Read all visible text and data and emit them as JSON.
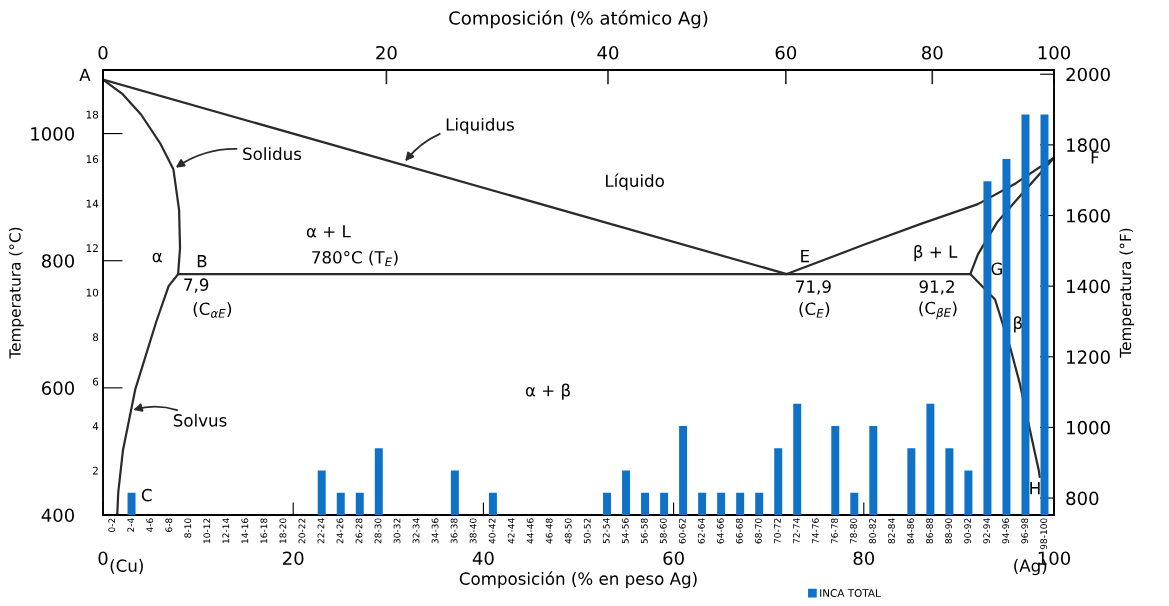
{
  "chart_data": [
    {
      "type": "line",
      "xlabel": "Composición (% en peso Ag)",
      "ylabel": "Temperatura (°C)",
      "y2label": "Temperatura (°F)",
      "line_style": "solid",
      "xlim": [
        0,
        100
      ],
      "xticks": [
        0,
        20,
        40,
        60,
        80,
        100
      ],
      "ylim": [
        400,
        1100
      ],
      "yticks": [
        400,
        600,
        800,
        1000
      ],
      "y2lim": [
        752,
        2012
      ],
      "y2ticks": [
        800,
        1000,
        1200,
        1400,
        1600,
        1800,
        2000
      ],
      "series": [
        {
          "color": "#2b2b2b",
          "x": [
            0,
            71.9
          ],
          "values": [
            1085,
            779
          ]
        },
        {
          "color": "#2b2b2b",
          "x": [
            0,
            2,
            4,
            6,
            7.4,
            8.0,
            8.1,
            7.9
          ],
          "values": [
            1085,
            1063,
            1030,
            985,
            944,
            880,
            820,
            779
          ]
        },
        {
          "color": "#2b2b2b",
          "x": [
            7.9,
            6.9,
            5.6,
            3.4,
            2.1,
            1.6,
            1.5
          ],
          "values": [
            779,
            760,
            704,
            598,
            502,
            435,
            400
          ]
        },
        {
          "color": "#2b2b2b",
          "x": [
            7.9,
            91.2
          ],
          "values": [
            779,
            779
          ]
        },
        {
          "color": "#2b2b2b",
          "x": [
            71.9,
            80,
            86,
            92,
            96,
            100
          ],
          "values": [
            779,
            825,
            858,
            889,
            922,
            962
          ]
        },
        {
          "color": "#2b2b2b",
          "x": [
            91.2,
            92,
            94,
            96.2,
            100
          ],
          "values": [
            779,
            810,
            860,
            898,
            962
          ]
        },
        {
          "color": "#2b2b2b",
          "x": [
            91.2,
            93.8,
            95.4,
            96.4,
            98.4,
            98.5
          ],
          "values": [
            779,
            739,
            663,
            607,
            470,
            460
          ]
        }
      ],
      "annotations": [
        {
          "text": "Liquidus",
          "x": 31.6,
          "y": 953
        },
        {
          "text": "Solidus",
          "x": 7.4,
          "y": 944
        },
        {
          "text": "Solvus",
          "x": 2.9,
          "y": 564
        },
        "A",
        "Líquido",
        "α + L",
        "780°C (T$_{E}$)",
        "α",
        "B",
        "7,9",
        "(C$_{αE}$)",
        "E",
        "71,9",
        "(C$_{E}$)",
        "β + L",
        "91,2",
        "(C$_{βE}$)",
        "G",
        "β",
        "F",
        "α + β",
        "C",
        "H",
        "(Cu)",
        "(Ag)",
        "Composición (% atómico Ag)",
        "0",
        "20",
        "40",
        "60",
        "80",
        "100"
      ]
    },
    {
      "type": "bar",
      "legend": "bottom",
      "categories": [
        "0-2",
        "2-4",
        "4-6",
        "6-8",
        "8-10",
        "10-12",
        "12-14",
        "14-16",
        "16-18",
        "18-20",
        "20-22",
        "22-24",
        "24-26",
        "26-28",
        "28-30",
        "30-32",
        "32-34",
        "34-36",
        "36-38",
        "38-40",
        "40-42",
        "42-44",
        "44-46",
        "46-48",
        "48-50",
        "50-52",
        "52-54",
        "54-56",
        "56-58",
        "58-60",
        "60-62",
        "62-64",
        "64-66",
        "66-68",
        "68-70",
        "70-72",
        "72-74",
        "74-76",
        "76-78",
        "78-80",
        "80-82",
        "82-84",
        "84-86",
        "86-88",
        "88-90",
        "90-92",
        "92-94",
        "94-96",
        "96-98",
        "98-100"
      ],
      "ylim": [
        0,
        20
      ],
      "yticks": [
        2,
        4,
        6,
        8,
        10,
        12,
        14,
        16,
        18
      ],
      "series": [
        {
          "name": "INCA TOTAL",
          "color": "#0f72c7",
          "values": [
            0,
            1,
            0,
            0,
            0,
            0,
            0,
            0,
            0,
            0,
            0,
            2,
            1,
            1,
            3,
            0,
            0,
            0,
            2,
            0,
            1,
            0,
            0,
            0,
            0,
            0,
            1,
            2,
            1,
            1,
            4,
            1,
            1,
            1,
            1,
            3,
            5,
            0,
            4,
            1,
            4,
            0,
            3,
            5,
            3,
            2,
            15,
            16,
            18,
            18
          ]
        }
      ]
    }
  ]
}
